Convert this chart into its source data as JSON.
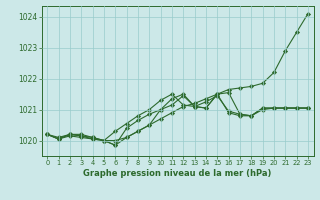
{
  "bg_color": "#cce8e8",
  "grid_color": "#99cccc",
  "line_color": "#2d6a2d",
  "marker_color": "#2d6a2d",
  "title": "Graphe pression niveau de la mer (hPa)",
  "xlim": [
    -0.5,
    23.5
  ],
  "ylim": [
    1019.5,
    1024.35
  ],
  "yticks": [
    1020,
    1021,
    1022,
    1023,
    1024
  ],
  "xticks": [
    0,
    1,
    2,
    3,
    4,
    5,
    6,
    7,
    8,
    9,
    10,
    11,
    12,
    13,
    14,
    15,
    16,
    17,
    18,
    19,
    20,
    21,
    22,
    23
  ],
  "series": [
    [
      1020.2,
      1020.1,
      1020.2,
      1020.15,
      1020.1,
      1020.0,
      1019.85,
      1020.1,
      1020.3,
      1020.5,
      1021.0,
      1021.15,
      1021.45,
      1021.1,
      1021.05,
      1021.5,
      1021.55,
      1020.85,
      1020.8,
      1021.05,
      1021.05,
      1021.05,
      1021.05,
      1021.05
    ],
    [
      1020.2,
      1020.05,
      1020.2,
      1020.15,
      1020.05,
      1020.0,
      1019.85,
      1020.4,
      1020.65,
      1020.85,
      1021.0,
      1021.35,
      1021.5,
      1021.1,
      1021.05,
      1021.5,
      1020.9,
      1020.8,
      1020.8,
      1021.0,
      1021.05,
      1021.05,
      1021.05,
      1021.05
    ],
    [
      1020.2,
      1020.05,
      1020.15,
      1020.1,
      1020.05,
      1020.0,
      1020.3,
      1020.55,
      1020.8,
      1021.0,
      1021.3,
      1021.5,
      1021.15,
      1021.1,
      1021.25,
      1021.45,
      1020.95,
      1020.85,
      1020.8,
      1021.05,
      1021.05,
      1021.05,
      1021.05,
      1021.05
    ],
    [
      1020.2,
      1020.05,
      1020.2,
      1020.2,
      1020.1,
      1020.0,
      1020.0,
      1020.1,
      1020.3,
      1020.5,
      1020.7,
      1020.9,
      1021.1,
      1021.2,
      1021.35,
      1021.5,
      1021.65,
      1021.7,
      1021.75,
      1021.85,
      1022.2,
      1022.9,
      1023.5,
      1024.1
    ]
  ]
}
